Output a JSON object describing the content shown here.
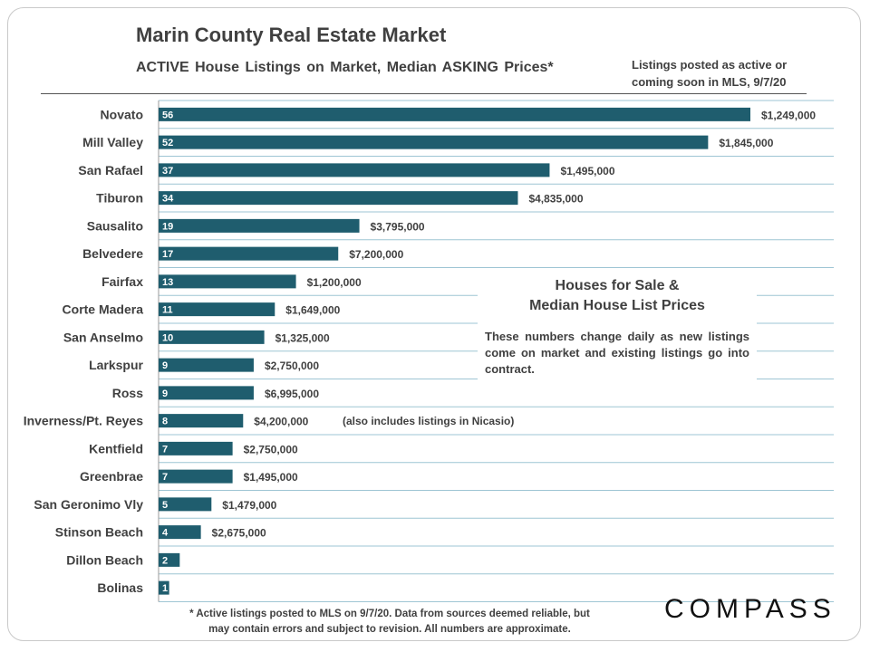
{
  "header": {
    "title": "Marin County Real Estate Market",
    "subtitle": "ACTIVE House Listings on Market, Median ASKING Prices*",
    "posted_line1": "Listings posted as active or",
    "posted_line2": "coming soon in MLS, 9/7/20"
  },
  "callout": {
    "heading_line1": "Houses for Sale &",
    "heading_line2": "Median House List Prices",
    "body": "These numbers change daily as new listings come on market and existing listings go into contract."
  },
  "note": "(also includes listings in Nicasio)",
  "footnote": {
    "line1": "* Active listings posted to MLS on 9/7/20. Data from sources deemed reliable, but",
    "line2": "may contain errors and subject to revision. All numbers are approximate."
  },
  "brand": {
    "logo_text": "COMPASS"
  },
  "colors": {
    "bar": "#1f5d6e",
    "grid": "#9ec5d4",
    "text": "#404040"
  },
  "chart_data": {
    "type": "bar",
    "orientation": "horizontal",
    "title": "Marin County Real Estate Market",
    "subtitle": "ACTIVE House Listings on Market, Median ASKING Prices*",
    "xlabel": "",
    "ylabel": "",
    "xlim": [
      0,
      56
    ],
    "categories": [
      "Novato",
      "Mill Valley",
      "San Rafael",
      "Tiburon",
      "Sausalito",
      "Belvedere",
      "Fairfax",
      "Corte Madera",
      "San Anselmo",
      "Larkspur",
      "Ross",
      "Inverness/Pt. Reyes",
      "Kentfield",
      "Greenbrae",
      "San Geronimo Vly",
      "Stinson Beach",
      "Dillon Beach",
      "Bolinas"
    ],
    "series": [
      {
        "name": "Active house listings",
        "values": [
          56,
          52,
          37,
          34,
          19,
          17,
          13,
          11,
          10,
          9,
          9,
          8,
          7,
          7,
          5,
          4,
          2,
          1
        ]
      }
    ],
    "price_labels": [
      "$1,249,000",
      "$1,845,000",
      "$1,495,000",
      "$4,835,000",
      "$3,795,000",
      "$7,200,000",
      "$1,200,000",
      "$1,649,000",
      "$1,325,000",
      "$2,750,000",
      "$6,995,000",
      "$4,200,000",
      "$2,750,000",
      "$1,495,000",
      "$1,479,000",
      "$2,675,000",
      "",
      ""
    ]
  }
}
